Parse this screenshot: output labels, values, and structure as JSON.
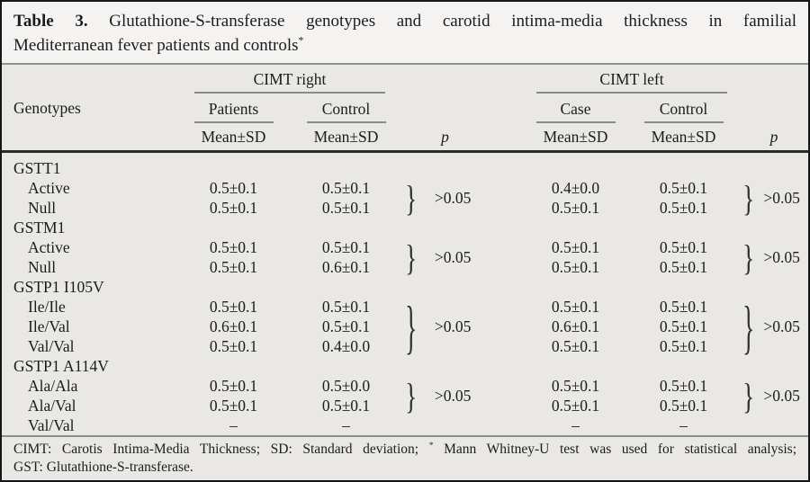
{
  "title": {
    "label": "Table 3.",
    "line1_rest": "Glutathione-S-transferase genotypes and carotid intima-media thickness in familial",
    "line2": "Mediterranean fever patients and controls",
    "asterisk": "*"
  },
  "header": {
    "genotypes": "Genotypes",
    "group_cimt_right": "CIMT right",
    "group_cimt_left": "CIMT left",
    "sub_patients": "Patients",
    "sub_control_right": "Control",
    "sub_case": "Case",
    "sub_control_left": "Control",
    "meansd": "Mean±SD",
    "p": "p"
  },
  "sections": [
    {
      "name": "GSTT1",
      "rows": [
        {
          "label": "Active",
          "v": [
            "0.5±0.1",
            "0.5±0.1",
            "0.4±0.0",
            "0.5±0.1"
          ]
        },
        {
          "label": "Null",
          "v": [
            "0.5±0.1",
            "0.5±0.1",
            "0.5±0.1",
            "0.5±0.1"
          ]
        }
      ],
      "p_cimt_right": ">0.05",
      "p_cimt_left": ">0.05"
    },
    {
      "name": "GSTM1",
      "rows": [
        {
          "label": "Active",
          "v": [
            "0.5±0.1",
            "0.5±0.1",
            "0.5±0.1",
            "0.5±0.1"
          ]
        },
        {
          "label": "Null",
          "v": [
            "0.5±0.1",
            "0.6±0.1",
            "0.5±0.1",
            "0.5±0.1"
          ]
        }
      ],
      "p_cimt_right": ">0.05",
      "p_cimt_left": ">0.05"
    },
    {
      "name": "GSTP1 I105V",
      "rows": [
        {
          "label": "Ile/Ile",
          "v": [
            "0.5±0.1",
            "0.5±0.1",
            "0.5±0.1",
            "0.5±0.1"
          ]
        },
        {
          "label": "Ile/Val",
          "v": [
            "0.6±0.1",
            "0.5±0.1",
            "0.6±0.1",
            "0.5±0.1"
          ]
        },
        {
          "label": "Val/Val",
          "v": [
            "0.5±0.1",
            "0.4±0.0",
            "0.5±0.1",
            "0.5±0.1"
          ]
        }
      ],
      "p_cimt_right": ">0.05",
      "p_cimt_left": ">0.05"
    },
    {
      "name": "GSTP1 A114V",
      "rows": [
        {
          "label": "Ala/Ala",
          "v": [
            "0.5±0.1",
            "0.5±0.0",
            "0.5±0.1",
            "0.5±0.1"
          ]
        },
        {
          "label": "Ala/Val",
          "v": [
            "0.5±0.1",
            "0.5±0.1",
            "0.5±0.1",
            "0.5±0.1"
          ]
        },
        {
          "label": "Val/Val",
          "v": [
            "–",
            "–",
            "–",
            "–"
          ]
        }
      ],
      "p_cimt_right": ">0.05",
      "p_cimt_left": ">0.05"
    }
  ],
  "footnote": {
    "part1": "CIMT: Carotis Intima-Media Thickness; SD: Standard deviation;",
    "star": "*",
    "part2": "Mann Whitney-U test was used for statistical analysis;",
    "line2": "GST: Glutathione-S-transferase."
  },
  "glyphs": {
    "brace": "}"
  },
  "colors": {
    "border": "#161616",
    "caption_bg": "#f4f3f1",
    "table_bg": "#e9e8e5",
    "rule_gray": "#929292",
    "rule_dark": "#2b2b2b",
    "text": "#1c1c1c"
  }
}
